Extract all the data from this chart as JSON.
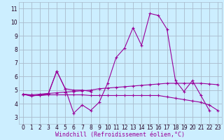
{
  "bg_color": "#cceeff",
  "plot_bg_color": "#cceeff",
  "grid_color": "#aabbcc",
  "line_color": "#990099",
  "xlabel": "Windchill (Refroidissement éolien,°C)",
  "xlabel_fontsize": 6.0,
  "tick_fontsize": 5.5,
  "xlim": [
    -0.5,
    23.5
  ],
  "ylim": [
    2.5,
    11.5
  ],
  "yticks": [
    3,
    4,
    5,
    6,
    7,
    8,
    9,
    10,
    11
  ],
  "xticks": [
    0,
    1,
    2,
    3,
    4,
    5,
    6,
    7,
    8,
    9,
    10,
    11,
    12,
    13,
    14,
    15,
    16,
    17,
    18,
    19,
    20,
    21,
    22,
    23
  ],
  "series": [
    [
      4.7,
      4.6,
      4.6,
      4.7,
      6.4,
      5.1,
      3.3,
      3.9,
      3.5,
      4.1,
      5.5,
      7.4,
      8.1,
      9.6,
      8.3,
      10.65,
      10.5,
      9.5,
      5.7,
      4.9,
      5.7,
      4.6,
      3.5,
      null
    ],
    [
      4.7,
      4.55,
      4.65,
      4.75,
      6.4,
      5.1,
      5.0,
      5.0,
      4.9,
      null,
      null,
      null,
      null,
      null,
      null,
      null,
      null,
      null,
      null,
      null,
      null,
      null,
      null,
      null
    ],
    [
      4.7,
      4.65,
      4.7,
      4.75,
      4.8,
      4.85,
      4.9,
      4.95,
      5.0,
      5.1,
      5.15,
      5.2,
      5.25,
      5.3,
      5.35,
      5.4,
      5.45,
      5.5,
      5.5,
      5.5,
      5.5,
      5.5,
      5.45,
      5.4
    ],
    [
      4.7,
      4.6,
      4.6,
      4.65,
      4.65,
      4.65,
      4.65,
      4.65,
      4.6,
      4.6,
      4.6,
      4.6,
      4.6,
      4.6,
      4.6,
      4.6,
      4.6,
      4.5,
      4.4,
      4.3,
      4.2,
      4.1,
      3.9,
      3.5
    ]
  ]
}
